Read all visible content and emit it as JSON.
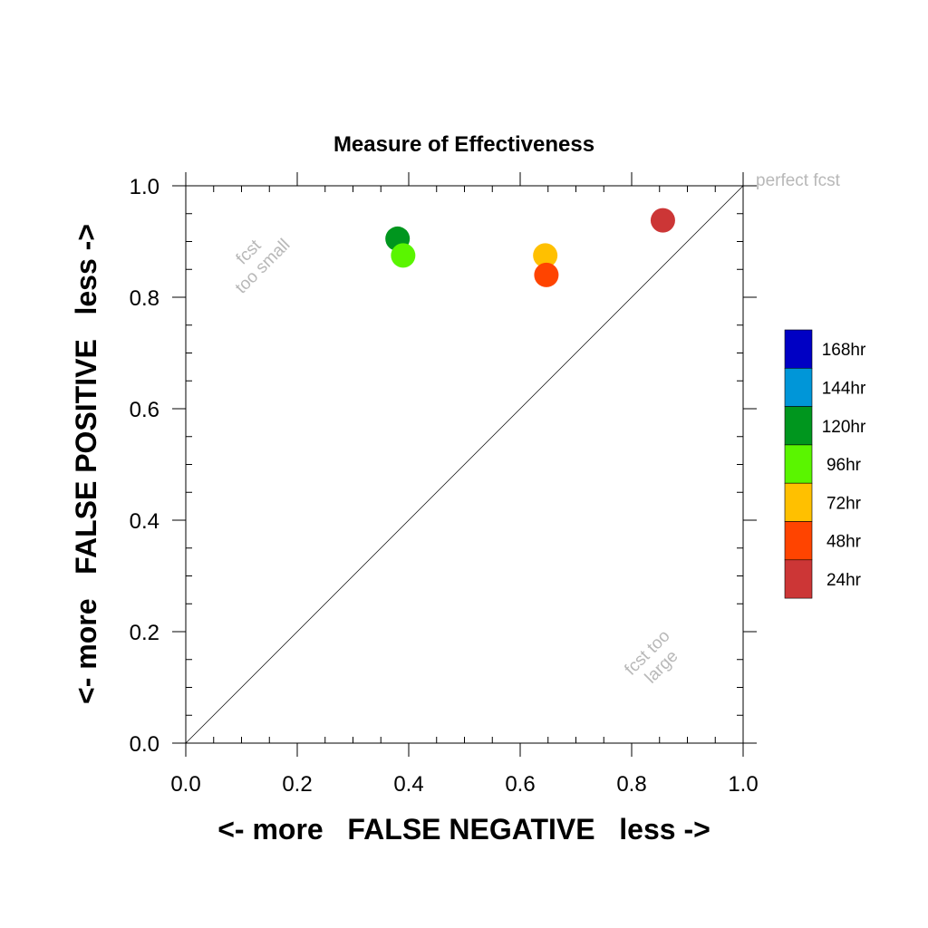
{
  "chart_data": {
    "type": "scatter",
    "title": "Measure of Effectiveness",
    "xlabel": "<- more   FALSE NEGATIVE   less ->",
    "ylabel": "<- more   FALSE POSITIVE   less ->",
    "xlim": [
      0,
      1
    ],
    "ylim": [
      0,
      1
    ],
    "x_ticks": [
      "0.0",
      "0.2",
      "0.4",
      "0.6",
      "0.8",
      "1.0"
    ],
    "y_ticks": [
      "0.0",
      "0.2",
      "0.4",
      "0.6",
      "0.8",
      "1.0"
    ],
    "grid": false,
    "reference_line": {
      "from": [
        0,
        0
      ],
      "to": [
        1,
        1
      ],
      "label": "perfect fcst"
    },
    "region_labels": [
      {
        "id": "upper-left",
        "lines": [
          "fcst",
          "too small"
        ]
      },
      {
        "id": "lower-right",
        "lines": [
          "fcst too",
          "large"
        ]
      }
    ],
    "legend_position": "right",
    "legend": [
      {
        "name": "168hr",
        "color": "#0000c4"
      },
      {
        "name": "144hr",
        "color": "#0096d8"
      },
      {
        "name": "120hr",
        "color": "#00961e"
      },
      {
        "name": "96hr",
        "color": "#5af500"
      },
      {
        "name": "72hr",
        "color": "#ffc000"
      },
      {
        "name": "48hr",
        "color": "#ff4400"
      },
      {
        "name": "24hr",
        "color": "#cc3636"
      }
    ],
    "series": [
      {
        "name": "120hr",
        "color": "#00961e",
        "x": [
          0.38
        ],
        "y": [
          0.905
        ]
      },
      {
        "name": "96hr",
        "color": "#5af500",
        "x": [
          0.39
        ],
        "y": [
          0.875
        ]
      },
      {
        "name": "72hr",
        "color": "#ffc000",
        "x": [
          0.645
        ],
        "y": [
          0.875
        ]
      },
      {
        "name": "48hr",
        "color": "#ff4400",
        "x": [
          0.647
        ],
        "y": [
          0.84
        ]
      },
      {
        "name": "24hr",
        "color": "#cc3636",
        "x": [
          0.856
        ],
        "y": [
          0.938
        ]
      }
    ]
  }
}
